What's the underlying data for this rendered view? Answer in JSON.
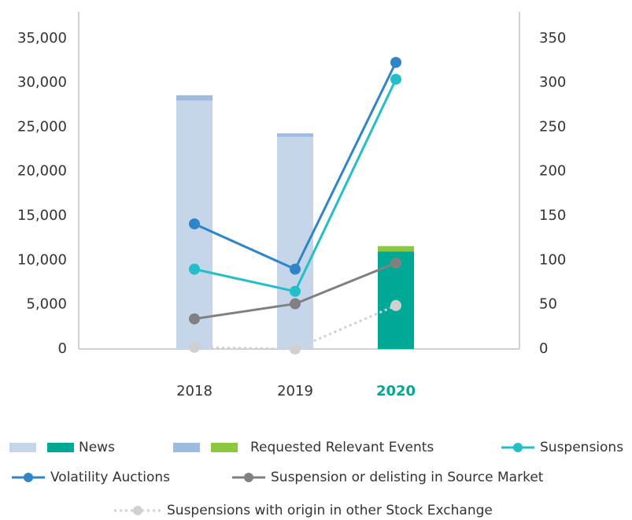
{
  "chart_data": {
    "type": "bar-line",
    "categories": [
      "2018",
      "2019",
      "2020"
    ],
    "series": [
      {
        "name": "News",
        "kind": "bar",
        "colors": [
          "#c5d5ea",
          "#c5d5ea",
          "#00a896"
        ],
        "values": [
          28000,
          23900,
          11000
        ]
      },
      {
        "name": "Requested Relevant Events",
        "kind": "bar",
        "colors": [
          "#9dbbe0",
          "#9dbbe0",
          "#8dc63f"
        ],
        "values": [
          600,
          400,
          600
        ]
      },
      {
        "name": "Suspensions",
        "kind": "line",
        "axis": "y2",
        "color": "#22bfc9",
        "values": [
          90,
          65,
          304
        ]
      },
      {
        "name": "Volatility Auctions",
        "kind": "line",
        "axis": "y2",
        "color": "#2e86c9",
        "values": [
          141,
          90,
          323
        ]
      },
      {
        "name": "Suspension or delisting in Source Market",
        "kind": "line",
        "axis": "y2",
        "color": "#808080",
        "values": [
          34,
          51,
          97
        ]
      },
      {
        "name": "Suspensions with origin in other Stock Exchange",
        "kind": "line",
        "axis": "y2",
        "color": "#d0d0d0",
        "dashed": true,
        "values": [
          2,
          0,
          49
        ]
      }
    ],
    "ylim": [
      0,
      38000
    ],
    "yticks": [
      0,
      {
        "value": 5000,
        "label": "5,000"
      },
      {
        "value": 10000,
        "label": "10,000"
      },
      {
        "value": 15000,
        "label": "15,000"
      },
      {
        "value": 20000,
        "label": "20,000"
      },
      {
        "value": 25000,
        "label": "25,000"
      },
      {
        "value": 30000,
        "label": "30,000"
      },
      {
        "value": 35000,
        "label": "35,000"
      }
    ],
    "y2lim": [
      0,
      380
    ],
    "y2ticks": [
      0,
      50,
      100,
      150,
      200,
      250,
      300,
      350
    ]
  }
}
